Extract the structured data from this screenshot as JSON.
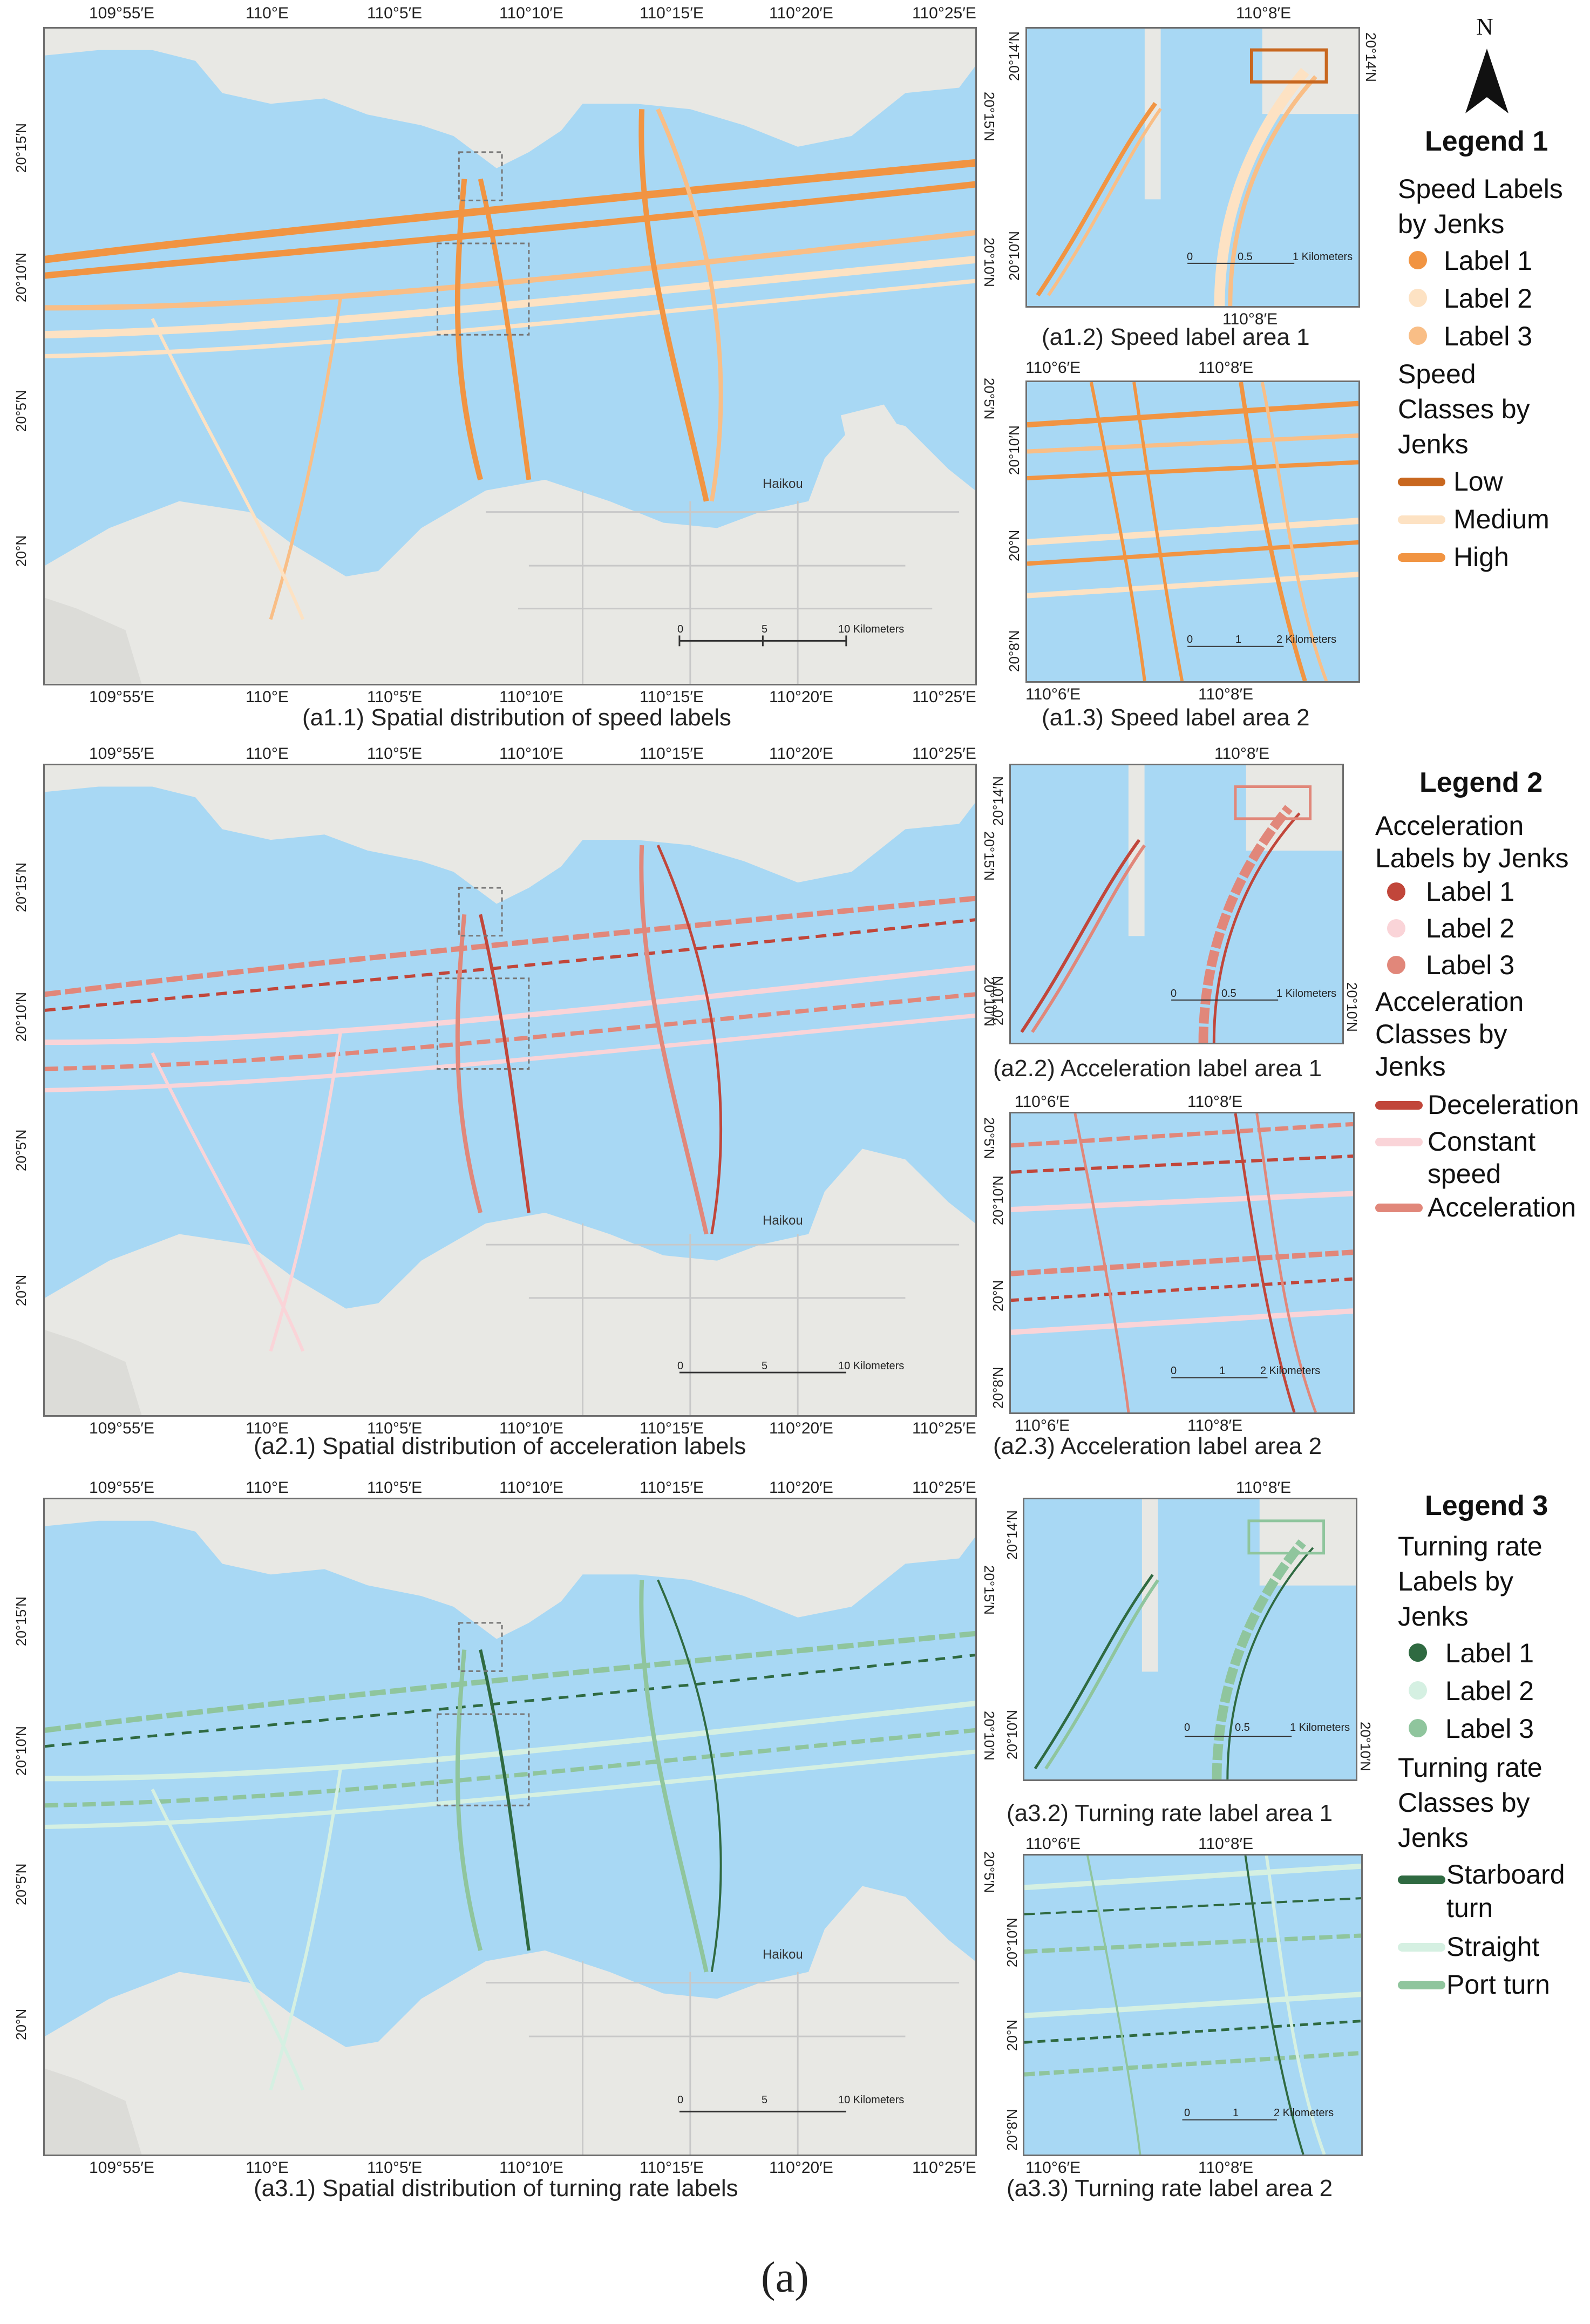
{
  "figure_label": "(a)",
  "north_label": "N",
  "big_top_ticks": [
    "109°55′E",
    "110°E",
    "110°5′E",
    "110°10′E",
    "110°15′E",
    "110°20′E",
    "110°25′E"
  ],
  "big_lat_ticks": [
    "20°15′N",
    "20°10′N",
    "20°5′N",
    "20°N"
  ],
  "small_top_ticks": [
    "110°6′E",
    "110°8′E"
  ],
  "area1_lat_ticks": [
    "20°14′N",
    "20°10′N"
  ],
  "area2_lat_ticks": [
    "20°10′N",
    "20°N",
    "20°8′N"
  ],
  "city_label": "Haikou",
  "scale_big": {
    "zero": "0",
    "five": "5",
    "ten": "10 Kilometers"
  },
  "scale_area1": {
    "zero": "0",
    "mid": "0.5",
    "end": "1 Kilometers"
  },
  "scale_area2": {
    "zero": "0",
    "mid": "1",
    "end": "2 Kilometers"
  },
  "colors": {
    "water": "#a8d8f4",
    "speed": {
      "label1": "#f19442",
      "label2": "#fde2c3",
      "label3": "#f9be86",
      "low": "#c8671f",
      "medium": "#fde2c3",
      "high": "#f19442"
    },
    "accel": {
      "label1": "#c1463a",
      "label2": "#fad4d8",
      "label3": "#e1877a",
      "decel": "#c1463a",
      "const": "#fad4d8",
      "accel": "#e1877a"
    },
    "turn": {
      "label1": "#2f6a41",
      "label2": "#d5f0e2",
      "label3": "#8fc59d",
      "star": "#2f6a41",
      "straight": "#d5f0e2",
      "port": "#8fc59d"
    }
  },
  "panels": {
    "a1_1": "(a1.1) Spatial distribution of speed labels",
    "a1_2": "(a1.2) Speed label area 1",
    "a1_3": "(a1.3) Speed label area 2",
    "a2_1": "(a2.1) Spatial distribution of acceleration labels",
    "a2_2": "(a2.2) Acceleration label area 1",
    "a2_3": "(a2.3) Acceleration label area 2",
    "a3_1": "(a3.1) Spatial distribution of turning rate labels",
    "a3_2": "(a3.2) Turning rate label area 1",
    "a3_3": "(a3.3) Turning rate label area 2"
  },
  "legend1": {
    "title": "Legend 1",
    "labels_heading_1": "Speed Labels",
    "labels_heading_2": "by Jenks",
    "labels": [
      "Label 1",
      "Label 2",
      "Label 3"
    ],
    "classes_heading_1": "Speed",
    "classes_heading_2": "Classes by",
    "classes_heading_3": "Jenks",
    "classes": [
      "Low",
      "Medium",
      "High"
    ]
  },
  "legend2": {
    "title": "Legend 2",
    "labels_heading_1": "Acceleration",
    "labels_heading_2": "Labels by Jenks",
    "labels": [
      "Label 1",
      "Label 2",
      "Label 3"
    ],
    "classes_heading_1": "Acceleration",
    "classes_heading_2": "Classes by",
    "classes_heading_3": "Jenks",
    "classes": [
      "Deceleration",
      "Constant",
      "speed",
      "Acceleration"
    ]
  },
  "legend3": {
    "title": "Legend 3",
    "labels_heading_1": "Turning rate",
    "labels_heading_2": "Labels by",
    "labels_heading_3": "Jenks",
    "labels": [
      "Label 1",
      "Label 2",
      "Label 3"
    ],
    "classes_heading_1": "Turning rate",
    "classes_heading_2": "Classes by",
    "classes_heading_3": "Jenks",
    "classes": [
      "Starboard",
      "turn",
      "Straight",
      "Port turn"
    ]
  }
}
